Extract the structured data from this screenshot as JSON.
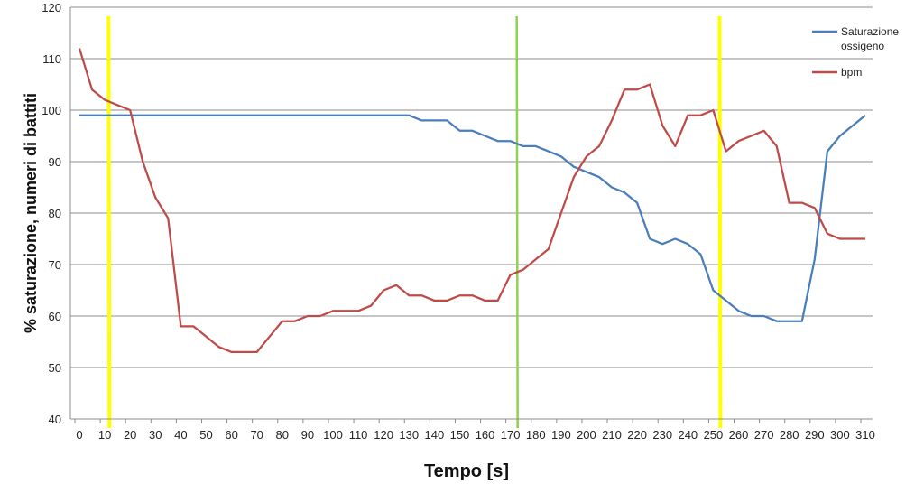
{
  "chart_data": {
    "type": "line",
    "xlabel": "Tempo [s]",
    "ylabel": "% saturazione, numeri di battiti",
    "xlim": [
      0,
      310
    ],
    "ylim": [
      40,
      120
    ],
    "x_ticks": [
      0,
      10,
      20,
      30,
      40,
      50,
      60,
      70,
      80,
      90,
      100,
      110,
      120,
      130,
      140,
      150,
      160,
      170,
      180,
      190,
      200,
      210,
      220,
      230,
      240,
      250,
      260,
      270,
      280,
      290,
      300,
      310
    ],
    "y_ticks": [
      40,
      50,
      60,
      70,
      80,
      90,
      100,
      110,
      120
    ],
    "grid": "horizontal",
    "legend_position": "top-right",
    "series": [
      {
        "name": "Saturazione ossigeno",
        "color": "#4a7ebb",
        "x": [
          0,
          5,
          10,
          15,
          20,
          25,
          30,
          35,
          40,
          45,
          50,
          55,
          60,
          65,
          70,
          75,
          80,
          85,
          90,
          95,
          100,
          105,
          110,
          115,
          120,
          125,
          130,
          135,
          140,
          145,
          150,
          155,
          160,
          165,
          170,
          175,
          180,
          185,
          190,
          195,
          200,
          205,
          210,
          215,
          220,
          225,
          230,
          235,
          240,
          245,
          250,
          255,
          260,
          265,
          270,
          275,
          280,
          285,
          290,
          295,
          300,
          305,
          310
        ],
        "values": [
          99,
          99,
          99,
          99,
          99,
          99,
          99,
          99,
          99,
          99,
          99,
          99,
          99,
          99,
          99,
          99,
          99,
          99,
          99,
          99,
          99,
          99,
          99,
          99,
          99,
          99,
          99,
          98,
          98,
          98,
          96,
          96,
          95,
          94,
          94,
          93,
          93,
          92,
          91,
          89,
          88,
          87,
          85,
          84,
          82,
          75,
          74,
          75,
          74,
          72,
          65,
          63,
          61,
          60,
          60,
          59,
          59,
          59,
          71,
          92,
          95,
          97,
          99
        ]
      },
      {
        "name": "bpm",
        "color": "#be4b48",
        "x": [
          0,
          5,
          10,
          15,
          20,
          25,
          30,
          35,
          40,
          45,
          50,
          55,
          60,
          65,
          70,
          75,
          80,
          85,
          90,
          95,
          100,
          105,
          110,
          115,
          120,
          125,
          130,
          135,
          140,
          145,
          150,
          155,
          160,
          165,
          170,
          175,
          180,
          185,
          190,
          195,
          200,
          205,
          210,
          215,
          220,
          225,
          230,
          235,
          240,
          245,
          250,
          255,
          260,
          265,
          270,
          275,
          280,
          285,
          290,
          295,
          300,
          305,
          310
        ],
        "values": [
          112,
          104,
          102,
          101,
          100,
          90,
          83,
          79,
          58,
          58,
          56,
          54,
          53,
          53,
          53,
          56,
          59,
          59,
          60,
          60,
          61,
          61,
          61,
          62,
          65,
          66,
          64,
          64,
          63,
          63,
          64,
          64,
          63,
          63,
          68,
          69,
          71,
          73,
          80,
          87,
          91,
          93,
          98,
          104,
          104,
          105,
          97,
          93,
          99,
          99,
          100,
          92,
          94,
          95,
          96,
          93,
          82,
          82,
          81,
          76,
          75,
          75,
          75
        ]
      }
    ],
    "markers": [
      {
        "x": 11.5,
        "color": "#ffff00"
      },
      {
        "x": 172.5,
        "color": "#92d050"
      },
      {
        "x": 252.5,
        "color": "#ffff00"
      }
    ]
  }
}
